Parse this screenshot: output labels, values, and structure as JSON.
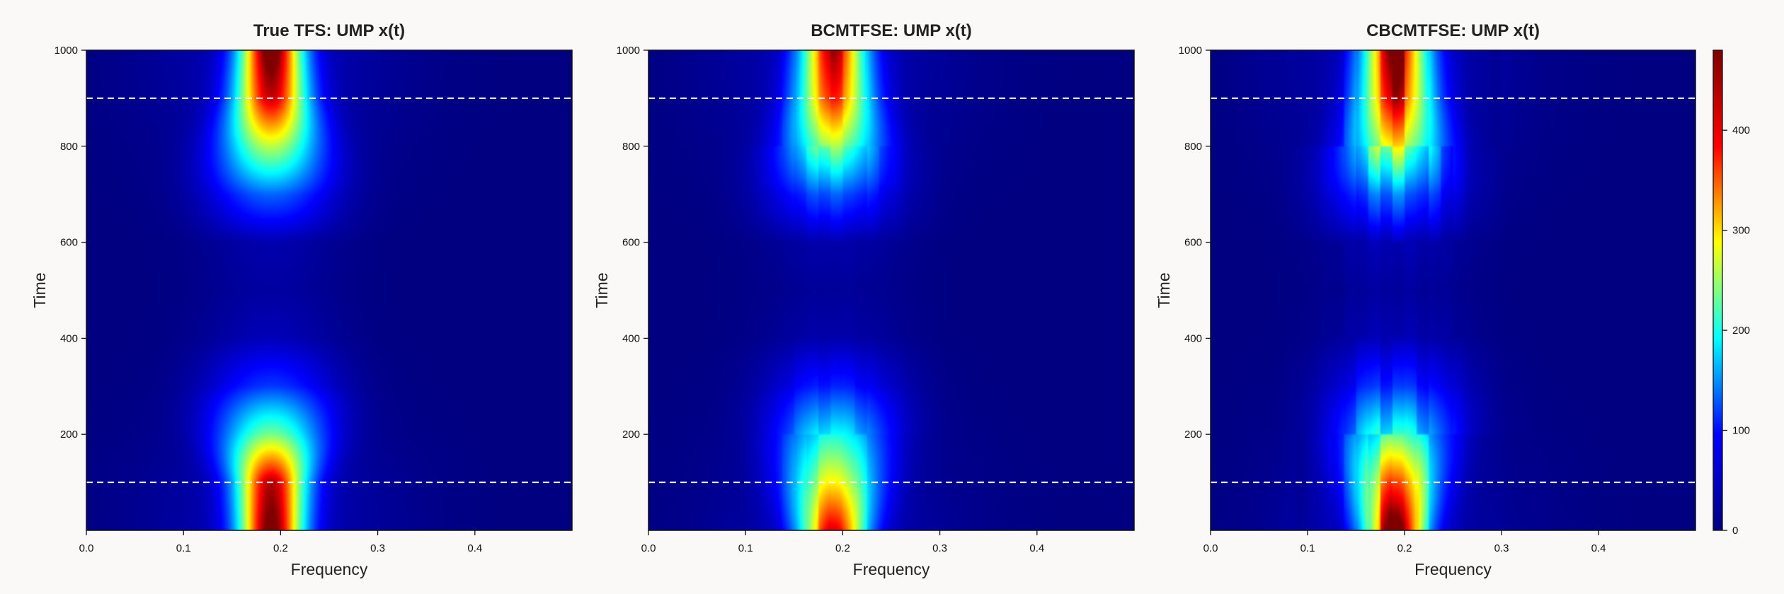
{
  "chart_data": [
    {
      "type": "heatmap",
      "title": "True TFS: UMP x(t)",
      "xlabel": "Frequency",
      "ylabel": "Time",
      "xlim": [
        0,
        0.5
      ],
      "ylim": [
        0,
        1000
      ],
      "xticks": [
        0.0,
        0.1,
        0.2,
        0.3,
        0.4
      ],
      "xtick_labels": [
        "0.0",
        "0.1",
        "0.2",
        "0.3",
        "0.4"
      ],
      "yticks": [
        200,
        400,
        600,
        800,
        1000
      ],
      "ytick_labels": [
        "200",
        "400",
        "600",
        "800",
        "1000"
      ],
      "reference_lines_time": [
        100,
        900
      ],
      "peak_frequency": 0.19,
      "peak_value": 480,
      "time_profile": {
        "t": [
          0,
          100,
          200,
          300,
          400,
          500,
          600,
          700,
          800,
          900,
          1000
        ],
        "amplitude": [
          470,
          430,
          220,
          80,
          25,
          15,
          20,
          100,
          250,
          420,
          480
        ]
      },
      "noise": 0
    },
    {
      "type": "heatmap",
      "title": "BCMTFSE:  UMP x(t)",
      "xlabel": "Frequency",
      "ylabel": "Time",
      "xlim": [
        0,
        0.5
      ],
      "ylim": [
        0,
        1000
      ],
      "xticks": [
        0.0,
        0.1,
        0.2,
        0.3,
        0.4
      ],
      "xtick_labels": [
        "0.0",
        "0.1",
        "0.2",
        "0.3",
        "0.4"
      ],
      "yticks": [
        200,
        400,
        600,
        800,
        1000
      ],
      "ytick_labels": [
        "200",
        "400",
        "600",
        "800",
        "1000"
      ],
      "reference_lines_time": [
        100,
        900
      ],
      "peak_frequency": 0.19,
      "peak_value": 420,
      "time_profile": {
        "t": [
          0,
          100,
          200,
          300,
          400,
          500,
          600,
          700,
          800,
          900,
          1000
        ],
        "amplitude": [
          390,
          270,
          170,
          70,
          20,
          12,
          20,
          95,
          230,
          360,
          410
        ]
      },
      "noise": 0.08
    },
    {
      "type": "heatmap",
      "title": "CBCMTFSE:  UMP x(t)",
      "xlabel": "Frequency",
      "ylabel": "Time",
      "xlim": [
        0,
        0.5
      ],
      "ylim": [
        0,
        1000
      ],
      "xticks": [
        0.0,
        0.1,
        0.2,
        0.3,
        0.4
      ],
      "xtick_labels": [
        "0.0",
        "0.1",
        "0.2",
        "0.3",
        "0.4"
      ],
      "yticks": [
        200,
        400,
        600,
        800,
        1000
      ],
      "ytick_labels": [
        "200",
        "400",
        "600",
        "800",
        "1000"
      ],
      "reference_lines_time": [
        100,
        900
      ],
      "peak_frequency": 0.19,
      "peak_value": 440,
      "time_profile": {
        "t": [
          0,
          100,
          200,
          300,
          400,
          500,
          600,
          700,
          800,
          900,
          1000
        ],
        "amplitude": [
          440,
          330,
          190,
          80,
          25,
          15,
          25,
          110,
          260,
          380,
          430
        ]
      },
      "noise": 0.18
    }
  ],
  "colorbar": {
    "range": [
      0,
      480
    ],
    "ticks": [
      0,
      100,
      200,
      300,
      400
    ],
    "tick_labels": [
      "0",
      "100",
      "200",
      "300",
      "400"
    ],
    "colormap": [
      "#00007f",
      "#0000ff",
      "#00ffff",
      "#ffff00",
      "#ff0000",
      "#7f0000"
    ]
  },
  "reference_line_color": "#ffffff",
  "background_color": "#faf9f8"
}
